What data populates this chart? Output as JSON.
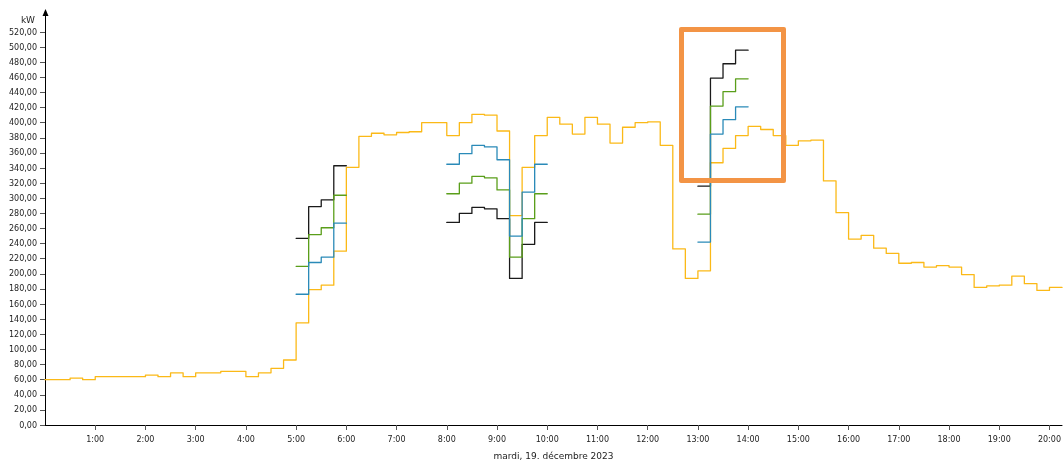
{
  "chart_data": {
    "type": "step",
    "xlabel": "mardi, 19. décembre 2023",
    "ylabel": "kW",
    "xlim": [
      0,
      20.25
    ],
    "xticks": [
      {
        "value": 1,
        "label": "1:00"
      },
      {
        "value": 2,
        "label": "2:00"
      },
      {
        "value": 3,
        "label": "3:00"
      },
      {
        "value": 4,
        "label": "4:00"
      },
      {
        "value": 5,
        "label": "5:00"
      },
      {
        "value": 6,
        "label": "6:00"
      },
      {
        "value": 7,
        "label": "7:00"
      },
      {
        "value": 8,
        "label": "8:00"
      },
      {
        "value": 9,
        "label": "9:00"
      },
      {
        "value": 10,
        "label": "10:00"
      },
      {
        "value": 11,
        "label": "11:00"
      },
      {
        "value": 12,
        "label": "12:00"
      },
      {
        "value": 13,
        "label": "13:00"
      },
      {
        "value": 14,
        "label": "14:00"
      },
      {
        "value": 15,
        "label": "15:00"
      },
      {
        "value": 16,
        "label": "16:00"
      },
      {
        "value": 17,
        "label": "17:00"
      },
      {
        "value": 18,
        "label": "18:00"
      },
      {
        "value": 19,
        "label": "19:00"
      },
      {
        "value": 20,
        "label": "20:00"
      }
    ],
    "ylim": [
      0,
      520
    ],
    "yticks": [
      {
        "value": 0,
        "label": "0,00"
      },
      {
        "value": 20,
        "label": "20,00"
      },
      {
        "value": 40,
        "label": "40,00"
      },
      {
        "value": 60,
        "label": "60,00"
      },
      {
        "value": 80,
        "label": "80,00"
      },
      {
        "value": 100,
        "label": "100,00"
      },
      {
        "value": 120,
        "label": "120,00"
      },
      {
        "value": 140,
        "label": "140,00"
      },
      {
        "value": 160,
        "label": "160,00"
      },
      {
        "value": 180,
        "label": "180,00"
      },
      {
        "value": 200,
        "label": "200,00"
      },
      {
        "value": 220,
        "label": "220,00"
      },
      {
        "value": 240,
        "label": "240,00"
      },
      {
        "value": 260,
        "label": "260,00"
      },
      {
        "value": 280,
        "label": "280,00"
      },
      {
        "value": 300,
        "label": "300,00"
      },
      {
        "value": 320,
        "label": "320,00"
      },
      {
        "value": 340,
        "label": "340,00"
      },
      {
        "value": 360,
        "label": "360,00"
      },
      {
        "value": 380,
        "label": "380,00"
      },
      {
        "value": 400,
        "label": "400,00"
      },
      {
        "value": 420,
        "label": "420,00"
      },
      {
        "value": 440,
        "label": "440,00"
      },
      {
        "value": 460,
        "label": "460,00"
      },
      {
        "value": 480,
        "label": "480,00"
      },
      {
        "value": 500,
        "label": "500,00"
      },
      {
        "value": 520,
        "label": "520,00"
      }
    ],
    "grid": false,
    "marker": "none",
    "line_style": "solid",
    "series": [
      {
        "color": "#fbb917",
        "x": [
          0,
          0.25,
          0.5,
          0.75,
          1,
          1.25,
          1.5,
          1.75,
          2,
          2.25,
          2.5,
          2.75,
          3,
          3.25,
          3.5,
          3.75,
          4,
          4.25,
          4.5,
          4.75,
          5,
          5.25,
          5.5,
          5.75,
          6,
          6.25,
          6.5,
          6.75,
          7,
          7.25,
          7.5,
          7.75,
          8,
          8.25,
          8.5,
          8.75,
          9,
          9.25,
          9.5,
          9.75,
          10,
          10.25,
          10.5,
          10.75,
          11,
          11.25,
          11.5,
          11.75,
          12,
          12.25,
          12.5,
          12.75,
          13,
          13.25,
          13.5,
          13.75,
          14,
          14.25,
          14.5,
          14.75,
          15,
          15.25,
          15.5,
          15.75,
          16,
          16.25,
          16.5,
          16.75,
          17,
          17.25,
          17.5,
          17.75,
          18,
          18.25,
          18.5,
          18.75,
          19,
          19.25,
          19.5,
          19.75,
          20,
          20.25
        ],
        "values": [
          60,
          60,
          62,
          60,
          64,
          64,
          64,
          64,
          66,
          64,
          69,
          64,
          69,
          69,
          71,
          71,
          64,
          69,
          75,
          86,
          135,
          179,
          185,
          230,
          341,
          382,
          386,
          384,
          387,
          388,
          400,
          400,
          383,
          400,
          411,
          410,
          389,
          277,
          341,
          383,
          407,
          398,
          385,
          407,
          398,
          373,
          394,
          400,
          401,
          370,
          233,
          194,
          204,
          347,
          366,
          383,
          395,
          391,
          383,
          370,
          376,
          377,
          323,
          281,
          246,
          251,
          234,
          227,
          214,
          215,
          209,
          211,
          209,
          199,
          182,
          184,
          185,
          197,
          187,
          178,
          182,
          182
        ]
      },
      {
        "color": "#1a1a1a",
        "x": [
          5,
          5.25,
          5.5,
          5.75,
          6,
          7,
          8,
          8.25,
          8.5,
          8.75,
          9,
          9.25,
          9.5,
          9.75,
          10,
          11,
          13,
          13.25,
          13.5,
          13.75,
          14
        ],
        "values": [
          247,
          289,
          298,
          343,
          343,
          null,
          268,
          280,
          288,
          286,
          273,
          194,
          239,
          268,
          268,
          null,
          316,
          459,
          478,
          496,
          496
        ]
      },
      {
        "color": "#5a9e1a",
        "x": [
          5,
          5.25,
          5.5,
          5.75,
          6,
          7,
          8,
          8.25,
          8.5,
          8.75,
          9,
          9.25,
          9.5,
          9.75,
          10,
          11,
          13,
          13.25,
          13.5,
          13.75,
          14
        ],
        "values": [
          210,
          252,
          261,
          304,
          304,
          null,
          306,
          320,
          329,
          327,
          311,
          222,
          273,
          306,
          306,
          null,
          279,
          422,
          441,
          458,
          458
        ]
      },
      {
        "color": "#2a8ab8",
        "x": [
          5,
          5.25,
          5.5,
          5.75,
          6,
          7,
          8,
          8.25,
          8.5,
          8.75,
          9,
          9.25,
          9.5,
          9.75,
          10,
          11,
          13,
          13.25,
          13.5,
          13.75,
          14
        ],
        "values": [
          173,
          215,
          222,
          267,
          267,
          null,
          345,
          359,
          370,
          368,
          351,
          250,
          308,
          345,
          345,
          null,
          242,
          385,
          404,
          421,
          421
        ]
      }
    ]
  }
}
